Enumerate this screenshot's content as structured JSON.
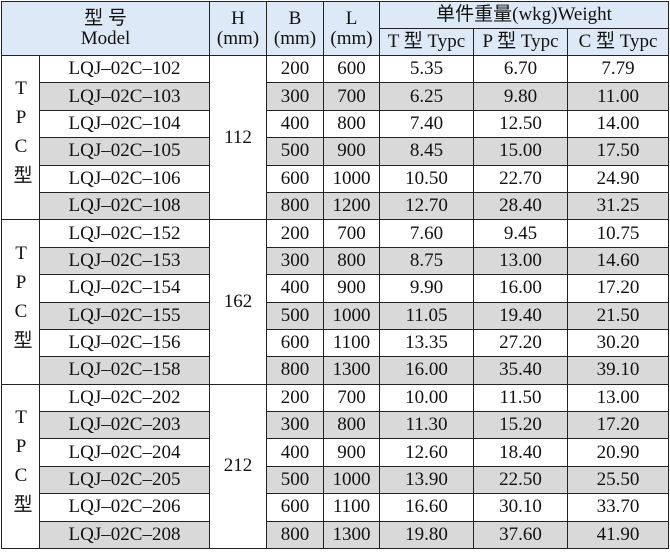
{
  "header": {
    "model": {
      "zh": "型 号",
      "en": "Model"
    },
    "h": {
      "name": "H",
      "unit": "(mm)"
    },
    "b": {
      "name": "B",
      "unit": "(mm)"
    },
    "l": {
      "name": "L",
      "unit": "(mm)"
    },
    "weight": "单件重量(wkg)Weight",
    "types": [
      "T 型 Typc",
      "P 型 Typc",
      "C 型 Typc"
    ]
  },
  "groups": [
    {
      "label": "TPC型",
      "h": "112",
      "rows": [
        [
          "LQJ–02C–102",
          "200",
          "600",
          "5.35",
          "6.70",
          "7.79"
        ],
        [
          "LQJ–02C–103",
          "300",
          "700",
          "6.25",
          "9.80",
          "11.00"
        ],
        [
          "LQJ–02C–104",
          "400",
          "800",
          "7.40",
          "12.50",
          "14.00"
        ],
        [
          "LQJ–02C–105",
          "500",
          "900",
          "8.45",
          "15.00",
          "17.50"
        ],
        [
          "LQJ–02C–106",
          "600",
          "1000",
          "10.50",
          "22.70",
          "24.90"
        ],
        [
          "LQJ–02C–108",
          "800",
          "1200",
          "12.70",
          "28.40",
          "31.25"
        ]
      ]
    },
    {
      "label": "TPC型",
      "h": "162",
      "rows": [
        [
          "LQJ–02C–152",
          "200",
          "700",
          "7.60",
          "9.45",
          "10.75"
        ],
        [
          "LQJ–02C–153",
          "300",
          "800",
          "8.75",
          "13.00",
          "14.60"
        ],
        [
          "LQJ–02C–154",
          "400",
          "900",
          "9.90",
          "16.00",
          "17.20"
        ],
        [
          "LQJ–02C–155",
          "500",
          "1000",
          "11.05",
          "19.40",
          "21.50"
        ],
        [
          "LQJ–02C–156",
          "600",
          "1100",
          "13.35",
          "27.20",
          "30.20"
        ],
        [
          "LQJ–02C–158",
          "800",
          "1300",
          "16.00",
          "35.40",
          "39.10"
        ]
      ]
    },
    {
      "label": "TPC型",
      "h": "212",
      "rows": [
        [
          "LQJ–02C–202",
          "200",
          "700",
          "10.00",
          "11.50",
          "13.00"
        ],
        [
          "LQJ–02C–203",
          "300",
          "800",
          "11.30",
          "15.20",
          "17.20"
        ],
        [
          "LQJ–02C–204",
          "400",
          "900",
          "12.60",
          "18.40",
          "20.90"
        ],
        [
          "LQJ–02C–205",
          "500",
          "1000",
          "13.90",
          "22.50",
          "25.50"
        ],
        [
          "LQJ–02C–206",
          "600",
          "1100",
          "16.60",
          "30.10",
          "33.70"
        ],
        [
          "LQJ–02C–208",
          "800",
          "1300",
          "19.80",
          "37.60",
          "41.90"
        ]
      ]
    }
  ]
}
